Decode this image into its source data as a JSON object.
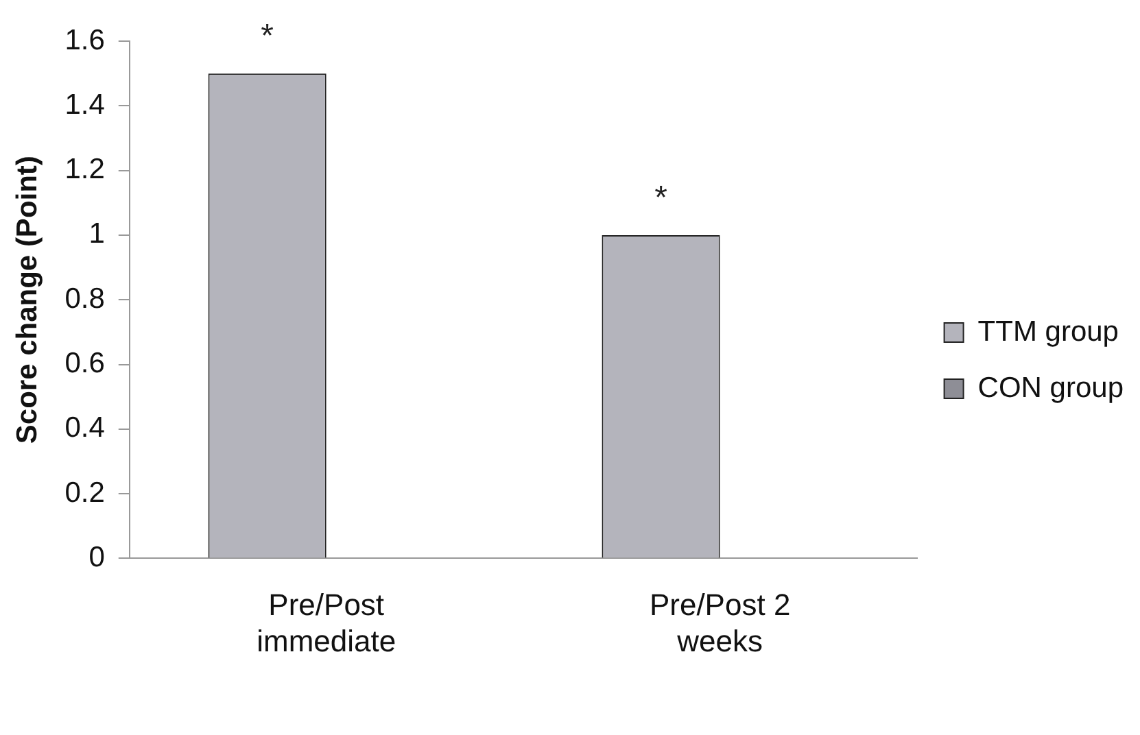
{
  "chart_data": {
    "type": "bar",
    "ylabel": "Score change (Point)",
    "categories": [
      "Pre/Post immediate",
      "Pre/Post 2 weeks"
    ],
    "series": [
      {
        "name": "TTM group",
        "color": "#b4b4bc",
        "values": [
          1.5,
          1.0
        ]
      },
      {
        "name": "CON group",
        "color": "#8e8e96",
        "values": [
          null,
          null
        ]
      }
    ],
    "ylim": [
      0,
      1.6
    ],
    "yticks": [
      0,
      0.2,
      0.4,
      0.6,
      0.8,
      1,
      1.2,
      1.4,
      1.6
    ],
    "grid": false,
    "legend": "right",
    "annotations": [
      {
        "text": "*",
        "x": "Pre/Post immediate",
        "y": 1.5
      },
      {
        "text": "*",
        "x": "Pre/Post 2 weeks",
        "y": 1.0
      }
    ]
  }
}
